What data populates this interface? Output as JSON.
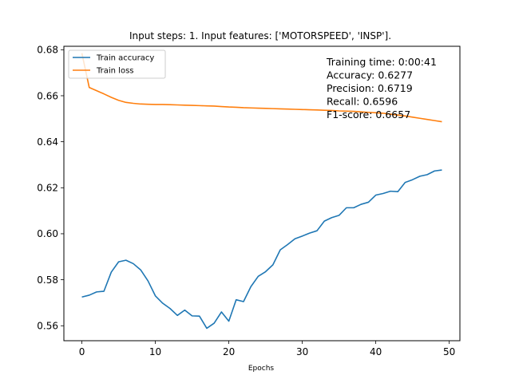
{
  "chart_data": {
    "type": "line",
    "title": "Input steps: 1. Input features: ['MOTORSPEED', 'INSP'].",
    "xlabel": "Epochs",
    "ylabel": "",
    "xlim": [
      -2.45,
      51.45
    ],
    "ylim": [
      0.5535,
      0.6815
    ],
    "xticks": [
      0,
      10,
      20,
      30,
      40,
      50
    ],
    "yticks": [
      0.56,
      0.58,
      0.6,
      0.62,
      0.64,
      0.66,
      0.68
    ],
    "ytick_labels": [
      "0.56",
      "0.58",
      "0.60",
      "0.62",
      "0.64",
      "0.66",
      "0.68"
    ],
    "grid": false,
    "legend_position": "top-left",
    "x": [
      0,
      1,
      2,
      3,
      4,
      5,
      6,
      7,
      8,
      9,
      10,
      11,
      12,
      13,
      14,
      15,
      16,
      17,
      18,
      19,
      20,
      21,
      22,
      23,
      24,
      25,
      26,
      27,
      28,
      29,
      30,
      31,
      32,
      33,
      34,
      35,
      36,
      37,
      38,
      39,
      40,
      41,
      42,
      43,
      44,
      45,
      46,
      47,
      48,
      49
    ],
    "series": [
      {
        "name": "Train accuracy",
        "color": "#1f77b4",
        "values": [
          0.5725,
          0.5733,
          0.5747,
          0.575,
          0.5833,
          0.5878,
          0.5885,
          0.587,
          0.5843,
          0.5795,
          0.573,
          0.5698,
          0.5675,
          0.5645,
          0.5668,
          0.5643,
          0.5642,
          0.5589,
          0.5611,
          0.566,
          0.562,
          0.5713,
          0.5705,
          0.577,
          0.5815,
          0.5835,
          0.5865,
          0.593,
          0.5953,
          0.5978,
          0.599,
          0.6003,
          0.6013,
          0.6055,
          0.607,
          0.608,
          0.6113,
          0.6113,
          0.6128,
          0.6137,
          0.6168,
          0.6175,
          0.6185,
          0.6183,
          0.6223,
          0.6235,
          0.625,
          0.6257,
          0.6273,
          0.6277
        ]
      },
      {
        "name": "Train loss",
        "color": "#ff7f0e",
        "values": [
          0.6785,
          0.6636,
          0.6622,
          0.6608,
          0.6593,
          0.658,
          0.6571,
          0.6567,
          0.6564,
          0.6563,
          0.6562,
          0.6562,
          0.6561,
          0.656,
          0.6559,
          0.6558,
          0.6557,
          0.6556,
          0.6555,
          0.6553,
          0.6551,
          0.655,
          0.6548,
          0.6547,
          0.6546,
          0.6545,
          0.6544,
          0.6543,
          0.6542,
          0.6541,
          0.654,
          0.6539,
          0.6538,
          0.6537,
          0.6536,
          0.6534,
          0.6533,
          0.6532,
          0.653,
          0.6528,
          0.6526,
          0.6524,
          0.652,
          0.6516,
          0.6512,
          0.6507,
          0.6502,
          0.6497,
          0.6492,
          0.6487
        ]
      }
    ],
    "annotations": [
      "Training time: 0:00:41",
      "Accuracy: 0.6277",
      "Precision: 0.6719",
      "Recall: 0.6596",
      "F1-score: 0.6657"
    ]
  }
}
